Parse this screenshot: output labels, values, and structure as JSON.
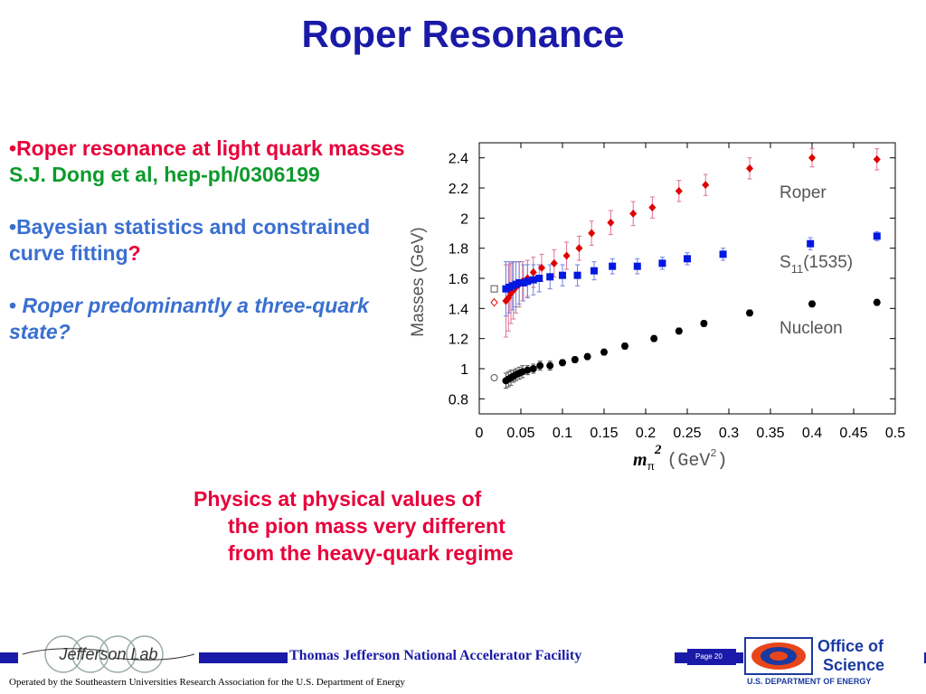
{
  "title": "Roper Resonance",
  "bullets": {
    "b1_bullet": "•",
    "b1_text": "Roper resonance at light quark masses",
    "b1_ref": "S.J. Dong et al, hep-ph/0306199",
    "b2_bullet": "•",
    "b2_text": "Bayesian statistics and constrained curve fitting",
    "b2_q": "?",
    "b3_bullet": "•",
    "b3_text": " Roper predominantly a three-quark state?"
  },
  "physics": {
    "line1": "Physics at physical values of",
    "line2": "the pion mass very different",
    "line3": "from the heavy-quark regime"
  },
  "footer": {
    "facility": "Thomas Jefferson National Accelerator Facility",
    "page": "Page 20",
    "operated_by": "Operated by the Southeastern Universities Research Association for the U.S. Department of  Energy",
    "jlab_logo_text": "Jefferson Lab",
    "office_line1": "Office of",
    "office_line2": "Science",
    "office_line3": "U.S. DEPARTMENT OF ENERGY"
  },
  "colors": {
    "title": "#1a1aa8",
    "red": "#e8003a",
    "green": "#0e9a2c",
    "blue": "#3a6fd0",
    "roper": "#e00000",
    "s11": "#0018e0",
    "nucleon": "#000000"
  },
  "chart_data": {
    "type": "scatter",
    "title": "",
    "xlabel_sym": "m",
    "xlabel_sub": "π",
    "xlabel_sup": "2",
    "xlabel_unit": "(GeV",
    "xlabel_unit_sup": "2",
    "xlabel_close": ")",
    "ylabel": "Masses (GeV)",
    "xlim": [
      0,
      0.5
    ],
    "ylim": [
      0.7,
      2.5
    ],
    "xticks": [
      "0",
      "0.05",
      "0.1",
      "0.15",
      "0.2",
      "0.25",
      "0.3",
      "0.35",
      "0.4",
      "0.45",
      "0.5"
    ],
    "yticks": [
      "0.8",
      "1",
      "1.2",
      "1.4",
      "1.6",
      "1.8",
      "2",
      "2.2",
      "2.4"
    ],
    "grid": false,
    "series": [
      {
        "name": "Roper",
        "marker": "diamond",
        "x": [
          0.032,
          0.035,
          0.038,
          0.041,
          0.044,
          0.048,
          0.052,
          0.058,
          0.065,
          0.075,
          0.09,
          0.105,
          0.12,
          0.135,
          0.158,
          0.185,
          0.208,
          0.24,
          0.272,
          0.325,
          0.4,
          0.478
        ],
        "y": [
          1.45,
          1.47,
          1.5,
          1.52,
          1.54,
          1.56,
          1.58,
          1.6,
          1.64,
          1.67,
          1.7,
          1.75,
          1.8,
          1.9,
          1.97,
          2.03,
          2.07,
          2.18,
          2.22,
          2.33,
          2.4,
          2.39
        ],
        "err": [
          0.24,
          0.22,
          0.2,
          0.19,
          0.17,
          0.15,
          0.13,
          0.12,
          0.1,
          0.09,
          0.09,
          0.09,
          0.08,
          0.08,
          0.08,
          0.08,
          0.07,
          0.07,
          0.07,
          0.07,
          0.06,
          0.07
        ]
      },
      {
        "name": "S11(1535)",
        "marker": "square",
        "x": [
          0.032,
          0.036,
          0.04,
          0.044,
          0.048,
          0.053,
          0.058,
          0.065,
          0.072,
          0.085,
          0.1,
          0.118,
          0.138,
          0.16,
          0.19,
          0.22,
          0.25,
          0.293,
          0.398,
          0.478
        ],
        "y": [
          1.53,
          1.54,
          1.55,
          1.56,
          1.57,
          1.57,
          1.58,
          1.59,
          1.6,
          1.61,
          1.62,
          1.62,
          1.65,
          1.68,
          1.68,
          1.7,
          1.73,
          1.76,
          1.83,
          1.88
        ],
        "err": [
          0.18,
          0.17,
          0.16,
          0.15,
          0.14,
          0.12,
          0.11,
          0.1,
          0.09,
          0.08,
          0.07,
          0.07,
          0.06,
          0.05,
          0.05,
          0.04,
          0.04,
          0.04,
          0.04,
          0.03
        ]
      },
      {
        "name": "Nucleon",
        "marker": "circle",
        "x": [
          0.032,
          0.035,
          0.038,
          0.041,
          0.044,
          0.048,
          0.052,
          0.058,
          0.065,
          0.073,
          0.085,
          0.1,
          0.115,
          0.13,
          0.15,
          0.175,
          0.21,
          0.24,
          0.27,
          0.325,
          0.4,
          0.478
        ],
        "y": [
          0.92,
          0.93,
          0.94,
          0.95,
          0.96,
          0.97,
          0.98,
          0.99,
          1.0,
          1.02,
          1.02,
          1.04,
          1.06,
          1.08,
          1.11,
          1.15,
          1.2,
          1.25,
          1.3,
          1.37,
          1.43,
          1.44
        ],
        "err": [
          0.05,
          0.05,
          0.05,
          0.04,
          0.04,
          0.04,
          0.04,
          0.03,
          0.03,
          0.03,
          0.03,
          0.02,
          0.02,
          0.02,
          0.02,
          0.02,
          0.02,
          0.02,
          0.02,
          0.02,
          0.02,
          0.02
        ]
      }
    ],
    "extrapolated": [
      {
        "series": "S11(1535)",
        "marker": "open-square",
        "x": 0.018,
        "y": 1.53
      },
      {
        "series": "Roper",
        "marker": "open-diamond",
        "x": 0.018,
        "y": 1.44
      },
      {
        "series": "Nucleon",
        "marker": "open-circle",
        "x": 0.018,
        "y": 0.94
      }
    ],
    "series_labels": {
      "roper": "Roper",
      "s11_main": "S",
      "s11_sub": "11",
      "s11_paren": "(1535)",
      "nucleon": "Nucleon"
    }
  }
}
